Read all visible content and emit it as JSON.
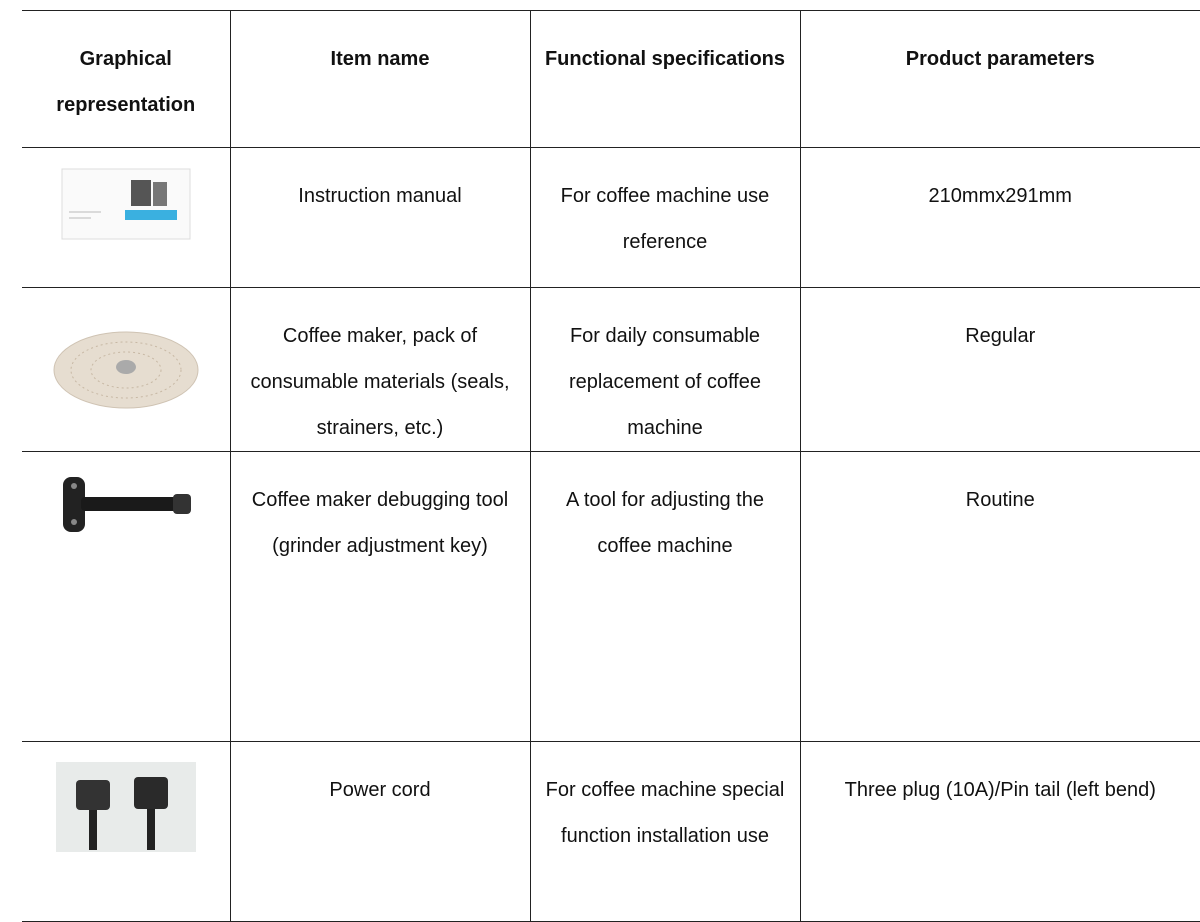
{
  "table": {
    "header": [
      "Graphical representation",
      "Item name",
      "Functional specifications",
      "Product parameters"
    ],
    "rows": [
      [
        "Instruction manual",
        "For coffee machine use reference",
        "210mmx291mm"
      ],
      [
        "Coffee maker, pack of consumable materials (seals, strainers, etc.)",
        "For daily consumable replacement of coffee machine",
        "Regular"
      ],
      [
        "Coffee maker debugging tool (grinder adjustment key)",
        "A tool for adjusting the coffee machine",
        "Routine"
      ],
      [
        "Power cord",
        "For coffee machine special function installation use",
        "Three plug (10A)/Pin tail (left bend)"
      ]
    ]
  }
}
